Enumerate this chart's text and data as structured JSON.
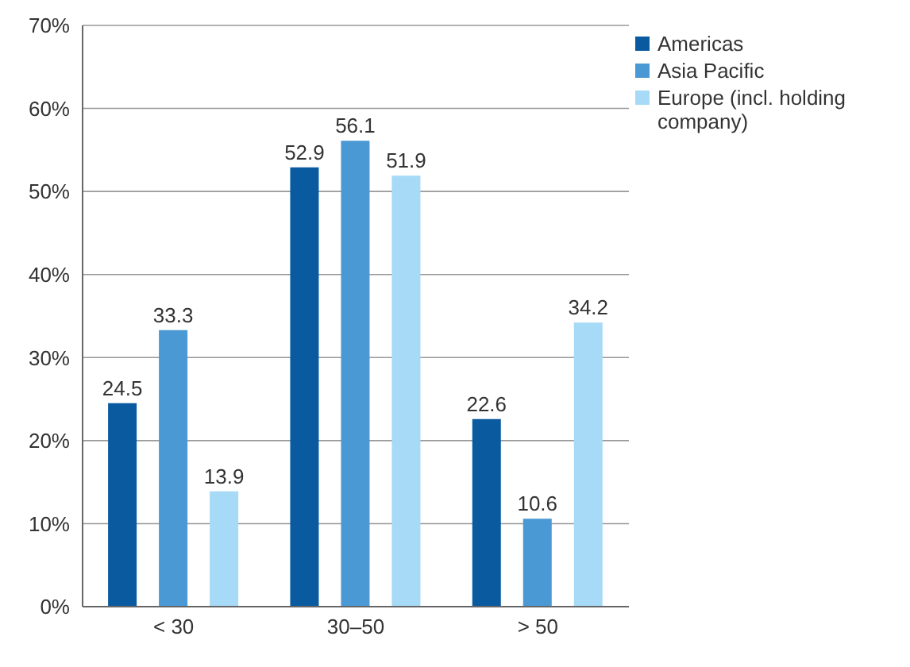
{
  "chart_data": {
    "type": "bar",
    "categories": [
      "< 30",
      "30–50",
      "> 50"
    ],
    "series": [
      {
        "name": "Americas",
        "color": "#0a5aa0",
        "values": [
          24.5,
          52.9,
          22.6
        ]
      },
      {
        "name": "Asia Pacific",
        "color": "#4a98d4",
        "values": [
          33.3,
          56.1,
          10.6
        ]
      },
      {
        "name": "Europe (incl. holding company)",
        "color": "#a6daf6",
        "values": [
          13.9,
          51.9,
          34.2
        ]
      }
    ],
    "ylim": [
      0,
      70
    ],
    "yticks": [
      {
        "value": 0,
        "label": "0%"
      },
      {
        "value": 10,
        "label": "10%"
      },
      {
        "value": 20,
        "label": "20%"
      },
      {
        "value": 30,
        "label": "30%"
      },
      {
        "value": 40,
        "label": "40%"
      },
      {
        "value": 50,
        "label": "50%"
      },
      {
        "value": 60,
        "label": "60%"
      },
      {
        "value": 70,
        "label": "70%"
      }
    ],
    "grid": "y",
    "legend": "top right",
    "data_labels": true
  }
}
